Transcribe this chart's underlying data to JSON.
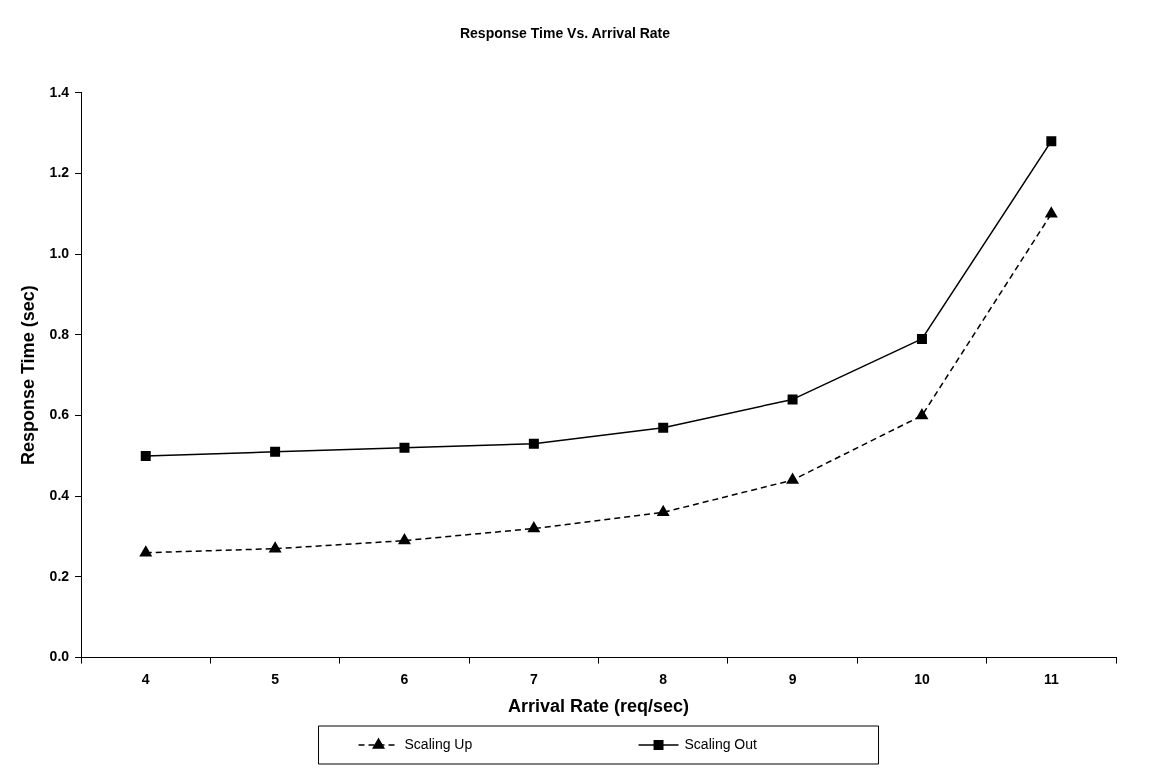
{
  "chart_data": {
    "type": "line",
    "title": "Response Time Vs. Arrival Rate",
    "xlabel": "Arrival Rate (req/sec)",
    "ylabel": "Response Time (sec)",
    "categories": [
      "4",
      "5",
      "6",
      "7",
      "8",
      "9",
      "10",
      "11"
    ],
    "series": [
      {
        "name": "Scaling Up",
        "color": "#000000",
        "marker": "triangle",
        "line_style": "dashed",
        "values": [
          0.26,
          0.27,
          0.29,
          0.32,
          0.36,
          0.44,
          0.6,
          1.1
        ]
      },
      {
        "name": "Scaling Out",
        "color": "#000000",
        "marker": "square",
        "line_style": "solid",
        "values": [
          0.5,
          0.51,
          0.52,
          0.53,
          0.57,
          0.64,
          0.79,
          1.28
        ]
      }
    ],
    "ylim": [
      0,
      1.4
    ],
    "yticks": [
      {
        "value": 0,
        "label": "0.0"
      },
      0.2,
      0.4,
      0.6,
      0.8,
      {
        "value": 1,
        "label": "1.0"
      },
      1.2,
      1.4
    ],
    "grid": false,
    "legend": "bottom"
  }
}
